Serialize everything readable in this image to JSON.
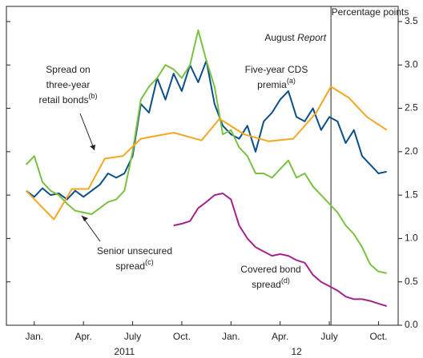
{
  "chart_data": {
    "type": "line",
    "y_axis_label": "Percentage points",
    "xlim": [
      -1.7,
      22.2
    ],
    "xticks": [
      {
        "value": 0,
        "label": "Jan."
      },
      {
        "value": 3,
        "label": "Apr."
      },
      {
        "value": 6,
        "label": "July"
      },
      {
        "value": 9,
        "label": "Oct."
      },
      {
        "value": 12,
        "label": "Jan."
      },
      {
        "value": 15,
        "label": "Apr."
      },
      {
        "value": 18,
        "label": "July"
      },
      {
        "value": 21,
        "label": "Oct."
      }
    ],
    "year_labels": [
      {
        "value": 5.5,
        "label": "2011"
      },
      {
        "value": 16,
        "label": "12"
      }
    ],
    "ylim": [
      0,
      3.675
    ],
    "yticks": [
      {
        "value": 0,
        "label": "0.0"
      },
      0.5,
      {
        "value": 1,
        "label": "1.0"
      },
      1.5,
      {
        "value": 2,
        "label": "2.0"
      },
      2.5,
      {
        "value": 3,
        "label": "3.0"
      },
      3.5
    ],
    "reference_line": {
      "x": 18.1,
      "label": "August ",
      "label_italic": "Report"
    },
    "series": [
      {
        "label": [
          "Five-year CDS",
          "premia"
        ],
        "footnote": "(a)",
        "color": "#0b4f8a",
        "x": [
          -0.5,
          0,
          0.5,
          1,
          1.5,
          2,
          2.5,
          3,
          3.5,
          4,
          4.5,
          5,
          5.5,
          6,
          6.5,
          7,
          7.5,
          8,
          8.5,
          9,
          9.5,
          10,
          10.5,
          11,
          11.5,
          12,
          12.5,
          13,
          13.5,
          14,
          14.5,
          15,
          15.5,
          16,
          16.5,
          17,
          17.5,
          18,
          18.5,
          19,
          19.5,
          20,
          20.5,
          21,
          21.5
        ],
        "values": [
          1.55,
          1.48,
          1.58,
          1.5,
          1.52,
          1.45,
          1.55,
          1.48,
          1.55,
          1.62,
          1.75,
          1.7,
          1.75,
          1.95,
          2.55,
          2.45,
          2.85,
          2.6,
          2.9,
          2.7,
          3.0,
          2.8,
          3.05,
          2.55,
          2.3,
          2.2,
          2.15,
          2.3,
          2.0,
          2.35,
          2.45,
          2.6,
          2.7,
          2.4,
          2.35,
          2.5,
          2.25,
          2.4,
          2.35,
          2.1,
          2.25,
          1.95,
          1.85,
          1.75,
          1.77
        ]
      },
      {
        "label": [
          "Senior unsecured",
          "spread"
        ],
        "footnote": "(c)",
        "color": "#7ac143",
        "x": [
          -0.5,
          0,
          0.5,
          1,
          1.5,
          2,
          2.5,
          3,
          3.5,
          4,
          4.5,
          5,
          5.5,
          6,
          6.5,
          7,
          7.5,
          8,
          8.5,
          9,
          9.5,
          10,
          10.5,
          11,
          11.5,
          12,
          12.5,
          13,
          13.5,
          14,
          14.5,
          15,
          15.5,
          16,
          16.5,
          17,
          17.5,
          18,
          18.5,
          19,
          19.5,
          20,
          20.5,
          21,
          21.5
        ],
        "values": [
          1.85,
          1.95,
          1.65,
          1.55,
          1.5,
          1.4,
          1.32,
          1.3,
          1.28,
          1.35,
          1.42,
          1.45,
          1.55,
          2.0,
          2.6,
          2.75,
          2.85,
          3.0,
          2.95,
          2.85,
          3.0,
          3.4,
          3.05,
          2.75,
          2.2,
          2.25,
          2.05,
          1.95,
          1.75,
          1.75,
          1.7,
          1.8,
          1.9,
          1.7,
          1.75,
          1.6,
          1.5,
          1.4,
          1.3,
          1.15,
          1.05,
          0.9,
          0.7,
          0.62,
          0.6
        ]
      },
      {
        "label": [
          "Spread on",
          "three-year",
          "retail bonds"
        ],
        "footnote": "(b)",
        "color": "#f5a623",
        "x": [
          -0.5,
          1.2,
          2.3,
          3.3,
          4.3,
          5.4,
          6.5,
          8.5,
          10.2,
          11.3,
          12.8,
          14.3,
          15.8,
          17.2,
          18.1,
          19.2,
          20.3,
          21.5
        ],
        "values": [
          1.55,
          1.22,
          1.57,
          1.57,
          1.92,
          1.95,
          2.15,
          2.22,
          2.13,
          2.38,
          2.2,
          2.12,
          2.15,
          2.45,
          2.75,
          2.62,
          2.4,
          2.25
        ]
      },
      {
        "label": [
          "Covered bond",
          "spread"
        ],
        "footnote": "(d)",
        "color": "#a3238e",
        "x": [
          8.5,
          9,
          9.5,
          10,
          10.5,
          11,
          11.5,
          12,
          12.5,
          13,
          13.5,
          14,
          14.5,
          15,
          15.5,
          16,
          16.5,
          17,
          17.5,
          18,
          18.5,
          19,
          19.5,
          20,
          20.5,
          21,
          21.5
        ],
        "values": [
          1.15,
          1.17,
          1.2,
          1.35,
          1.42,
          1.5,
          1.52,
          1.45,
          1.15,
          1.0,
          0.9,
          0.85,
          0.8,
          0.82,
          0.8,
          0.75,
          0.72,
          0.58,
          0.5,
          0.45,
          0.4,
          0.33,
          0.3,
          0.3,
          0.28,
          0.25,
          0.22
        ]
      }
    ]
  }
}
